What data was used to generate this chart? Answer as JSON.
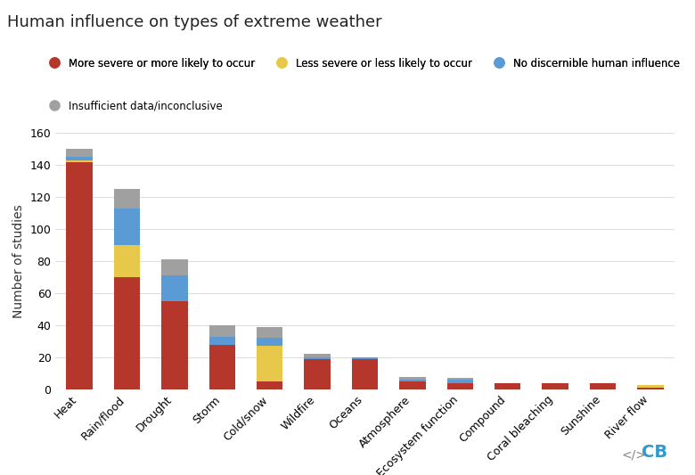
{
  "title": "Human influence on types of extreme weather",
  "ylabel": "Number of studies",
  "categories": [
    "Heat",
    "Rain/flood",
    "Drought",
    "Storm",
    "Cold/snow",
    "Wildfire",
    "Oceans",
    "Atmosphere",
    "Ecosystem function",
    "Compound",
    "Coral bleaching",
    "Sunshine",
    "River flow"
  ],
  "more_severe": [
    142,
    70,
    55,
    28,
    5,
    19,
    19,
    5,
    4,
    4,
    4,
    4,
    1
  ],
  "less_severe": [
    1,
    20,
    0,
    0,
    22,
    0,
    0,
    0,
    0,
    0,
    0,
    0,
    2
  ],
  "no_influence": [
    2,
    23,
    16,
    5,
    5,
    1,
    1,
    1,
    2,
    0,
    0,
    0,
    0
  ],
  "insufficient": [
    5,
    12,
    10,
    7,
    7,
    2,
    0,
    2,
    1,
    0,
    0,
    0,
    0
  ],
  "color_more_severe": "#b5372b",
  "color_less_severe": "#e8c84a",
  "color_no_influence": "#5b9bd5",
  "color_insufficient": "#a0a0a0",
  "background_color": "#ffffff",
  "ylim": [
    0,
    160
  ],
  "yticks": [
    0,
    20,
    40,
    60,
    80,
    100,
    120,
    140,
    160
  ],
  "legend_labels": [
    "More severe or more likely to occur",
    "Less severe or less likely to occur",
    "No discernible human influence",
    "Insufficient data/inconclusive"
  ],
  "title_fontsize": 13,
  "ylabel_fontsize": 10,
  "tick_fontsize": 9
}
